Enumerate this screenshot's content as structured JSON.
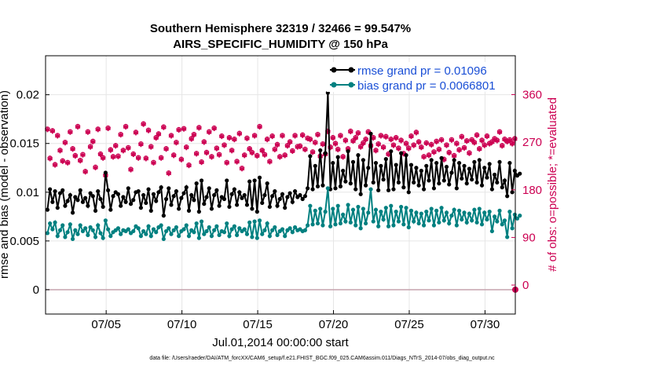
{
  "chart_data": {
    "type": "line",
    "title": "Southern Hemisphere 32319 / 32466 = 99.547%",
    "subtitle": "AIRS_SPECIFIC_HUMIDITY @ 150 hPa",
    "xlabel": "Jul.01,2014 00:00:00 start",
    "ylabel_left": "rmse and bias (model - observation)",
    "ylabel_right": "# of obs: o=possible; *=evaluated",
    "footer": "data file: /Users/raeder/DAI/ATM_forcXX/CAM6_setup/f.e21.FHIST_BGC.f09_025.CAM6assim.011/Diags_NTrS_2014-07/obs_diag_output.nc",
    "x_tick_labels": [
      "07/05",
      "07/10",
      "07/15",
      "07/20",
      "07/25",
      "07/30"
    ],
    "x_tick_days": [
      5,
      10,
      15,
      20,
      25,
      30
    ],
    "xlim_days": [
      1,
      32
    ],
    "y_left_ticks": [
      "0",
      "0.005",
      "0.01",
      "0.015",
      "0.02"
    ],
    "y_left_tick_values": [
      0,
      0.005,
      0.01,
      0.015,
      0.02
    ],
    "ylim_left": [
      -0.0025,
      0.024
    ],
    "y_right_ticks": [
      "0",
      "90",
      "180",
      "270",
      "360"
    ],
    "y_right_tick_values": [
      0,
      90,
      180,
      270,
      360
    ],
    "ylim_right": [
      -54.8,
      433.5
    ],
    "grid": true,
    "legend_placement": "top-right",
    "series": [
      {
        "name": "rmse grand pr = 0.01096",
        "color": "#000000",
        "axis": "left",
        "values": [
          0.0082,
          0.0103,
          0.009,
          0.0101,
          0.0084,
          0.0099,
          0.0102,
          0.0086,
          0.0091,
          0.0097,
          0.0079,
          0.0095,
          0.0092,
          0.0102,
          0.009,
          0.0094,
          0.0086,
          0.0099,
          0.0096,
          0.0081,
          0.0101,
          0.0093,
          0.0085,
          0.012,
          0.0102,
          0.0082,
          0.0096,
          0.01,
          0.0098,
          0.0086,
          0.0095,
          0.009,
          0.0104,
          0.0088,
          0.0092,
          0.01,
          0.0101,
          0.0084,
          0.0097,
          0.0089,
          0.0103,
          0.0081,
          0.0098,
          0.0091,
          0.01,
          0.0105,
          0.0076,
          0.0093,
          0.0104,
          0.0087,
          0.0096,
          0.0101,
          0.0083,
          0.0094,
          0.0099,
          0.0105,
          0.0081,
          0.0097,
          0.0092,
          0.0109,
          0.008,
          0.0112,
          0.0088,
          0.0095,
          0.0104,
          0.0083,
          0.0097,
          0.0102,
          0.0086,
          0.0095,
          0.0093,
          0.0112,
          0.0085,
          0.0098,
          0.0103,
          0.0087,
          0.01,
          0.0094,
          0.0097,
          0.0087,
          0.0111,
          0.0083,
          0.0112,
          0.008,
          0.0115,
          0.0089,
          0.0097,
          0.0109,
          0.0085,
          0.0096,
          0.0101,
          0.0086,
          0.0093,
          0.0098,
          0.0084,
          0.0095,
          0.0099,
          0.009,
          0.0101,
          0.0095,
          0.0097,
          0.0093,
          0.0096,
          0.0104,
          0.0137,
          0.0103,
          0.0127,
          0.0106,
          0.0143,
          0.0107,
          0.014,
          0.0202,
          0.0103,
          0.013,
          0.0104,
          0.0136,
          0.0106,
          0.0122,
          0.0111,
          0.0142,
          0.0109,
          0.0131,
          0.0103,
          0.0138,
          0.0098,
          0.0133,
          0.0107,
          0.0125,
          0.016,
          0.011,
          0.013,
          0.0102,
          0.0127,
          0.0113,
          0.0134,
          0.0102,
          0.0142,
          0.0103,
          0.0128,
          0.011,
          0.014,
          0.0105,
          0.0138,
          0.01,
          0.0128,
          0.011,
          0.0125,
          0.0107,
          0.0122,
          0.0103,
          0.0127,
          0.0112,
          0.0133,
          0.0104,
          0.013,
          0.0109,
          0.0135,
          0.0112,
          0.0126,
          0.0108,
          0.012,
          0.0133,
          0.0104,
          0.013,
          0.0114,
          0.0127,
          0.0109,
          0.0124,
          0.0113,
          0.0131,
          0.011,
          0.0133,
          0.0107,
          0.0125,
          0.0115,
          0.0129,
          0.0103,
          0.0118,
          0.011,
          0.0131,
          0.0105,
          0.0112,
          0.0096,
          0.013,
          0.01,
          0.0122,
          0.0117,
          0.0119
        ]
      },
      {
        "name": "bias grand pr = 0.0066801",
        "color": "#008080",
        "axis": "left",
        "values": [
          0.0058,
          0.0068,
          0.0062,
          0.0069,
          0.0055,
          0.0061,
          0.0066,
          0.0054,
          0.0059,
          0.0067,
          0.0052,
          0.0061,
          0.0057,
          0.0066,
          0.006,
          0.0063,
          0.0056,
          0.0064,
          0.0061,
          0.0054,
          0.0066,
          0.0058,
          0.0053,
          0.0071,
          0.0062,
          0.0055,
          0.0059,
          0.0061,
          0.0063,
          0.0057,
          0.0061,
          0.006,
          0.0062,
          0.0058,
          0.006,
          0.0065,
          0.0063,
          0.0055,
          0.006,
          0.0057,
          0.0065,
          0.0055,
          0.0062,
          0.0059,
          0.0064,
          0.0066,
          0.0052,
          0.006,
          0.0063,
          0.0057,
          0.0061,
          0.0064,
          0.0055,
          0.006,
          0.0062,
          0.0066,
          0.0055,
          0.0061,
          0.0059,
          0.0068,
          0.0053,
          0.007,
          0.0057,
          0.006,
          0.0064,
          0.0055,
          0.0061,
          0.0065,
          0.0056,
          0.006,
          0.0059,
          0.0068,
          0.0055,
          0.0062,
          0.0065,
          0.0056,
          0.0063,
          0.006,
          0.0062,
          0.0057,
          0.0069,
          0.0054,
          0.007,
          0.0053,
          0.0071,
          0.0057,
          0.0061,
          0.0068,
          0.0055,
          0.0061,
          0.0064,
          0.0056,
          0.006,
          0.0062,
          0.0055,
          0.0061,
          0.0063,
          0.0059,
          0.0064,
          0.0061,
          0.0062,
          0.006,
          0.0061,
          0.0066,
          0.0086,
          0.0067,
          0.0081,
          0.0068,
          0.0083,
          0.0066,
          0.008,
          0.0104,
          0.0065,
          0.0083,
          0.0067,
          0.0086,
          0.0068,
          0.0077,
          0.007,
          0.0087,
          0.0069,
          0.0082,
          0.0066,
          0.0085,
          0.0063,
          0.0083,
          0.0068,
          0.0079,
          0.0103,
          0.007,
          0.0082,
          0.0065,
          0.008,
          0.0072,
          0.0084,
          0.0065,
          0.0086,
          0.0066,
          0.008,
          0.007,
          0.0085,
          0.0067,
          0.0084,
          0.0064,
          0.0081,
          0.007,
          0.0079,
          0.0068,
          0.0078,
          0.0066,
          0.008,
          0.0071,
          0.0083,
          0.0066,
          0.0081,
          0.0069,
          0.0084,
          0.0071,
          0.0079,
          0.0068,
          0.0076,
          0.0082,
          0.0066,
          0.0081,
          0.0072,
          0.0079,
          0.0069,
          0.0078,
          0.0071,
          0.0082,
          0.0069,
          0.0083,
          0.0067,
          0.0079,
          0.0072,
          0.008,
          0.006,
          0.0075,
          0.007,
          0.0081,
          0.0067,
          0.0071,
          0.0054,
          0.008,
          0.0063,
          0.0077,
          0.0073,
          0.0076
        ]
      }
    ],
    "obs_counts_possible": [
      295,
      240,
      292,
      228,
      283,
      255,
      235,
      270,
      232,
      290,
      258,
      245,
      300,
      236,
      247,
      215,
      290,
      262,
      272,
      223,
      295,
      248,
      241,
      208,
      297,
      256,
      243,
      264,
      244,
      285,
      255,
      300,
      260,
      219,
      248,
      289,
      241,
      267,
      305,
      240,
      293,
      262,
      232,
      279,
      286,
      241,
      299,
      258,
      212,
      283,
      246,
      270,
      294,
      238,
      296,
      261,
      227,
      277,
      285,
      249,
      298,
      233,
      271,
      251,
      290,
      243,
      297,
      259,
      247,
      282,
      265,
      232,
      279,
      255,
      276,
      234,
      287,
      221,
      246,
      278,
      258,
      251,
      283,
      245,
      300,
      255,
      247,
      276,
      234,
      282,
      257,
      266,
      243,
      283,
      246,
      264,
      271,
      254,
      283,
      262,
      263,
      284,
      257,
      278,
      276,
      252,
      270,
      285,
      244,
      267,
      248,
      291,
      261,
      279,
      268,
      257,
      283,
      243,
      274,
      258,
      291,
      273,
      279,
      288,
      262,
      269,
      276,
      290,
      264,
      279,
      255,
      267,
      283,
      261,
      281,
      248,
      276,
      265,
      279,
      259,
      274,
      249,
      268,
      259,
      282,
      265,
      289,
      271,
      261,
      243,
      269,
      246,
      266,
      252,
      272,
      257,
      275,
      238,
      265,
      251,
      275,
      245,
      268,
      256,
      281,
      260,
      273,
      250,
      275,
      270,
      284,
      258,
      274,
      265,
      282,
      268,
      271,
      277,
      274,
      290,
      264,
      276,
      272,
      275,
      268,
      277
    ],
    "obs_counts_evaluated": [
      294,
      239,
      291,
      227,
      282,
      254,
      234,
      269,
      231,
      289,
      257,
      244,
      299,
      235,
      246,
      214,
      289,
      261,
      271,
      222,
      294,
      247,
      240,
      207,
      296,
      255,
      242,
      263,
      243,
      284,
      254,
      299,
      259,
      218,
      247,
      288,
      240,
      266,
      304,
      239,
      292,
      261,
      231,
      278,
      285,
      240,
      298,
      257,
      211,
      282,
      245,
      269,
      293,
      237,
      295,
      260,
      226,
      276,
      284,
      248,
      297,
      232,
      270,
      250,
      289,
      242,
      296,
      258,
      246,
      281,
      264,
      231,
      278,
      254,
      275,
      233,
      286,
      220,
      245,
      277,
      257,
      250,
      282,
      244,
      299,
      254,
      246,
      275,
      233,
      281,
      256,
      265,
      242,
      282,
      245,
      263,
      270,
      253,
      282,
      261,
      262,
      283,
      256,
      277,
      275,
      251,
      269,
      284,
      243,
      266,
      247,
      290,
      260,
      278,
      267,
      256,
      282,
      242,
      273,
      257,
      290,
      272,
      278,
      287,
      261,
      268,
      275,
      289,
      263,
      278,
      254,
      266,
      282,
      260,
      280,
      247,
      275,
      264,
      278,
      258,
      273,
      248,
      267,
      258,
      281,
      264,
      288,
      270,
      260,
      242,
      268,
      245,
      265,
      251,
      271,
      256,
      274,
      237,
      264,
      250,
      274,
      244,
      267,
      255,
      280,
      259,
      272,
      249,
      274,
      269,
      283,
      257,
      273,
      264,
      281,
      267,
      270,
      276,
      273,
      289,
      263,
      275,
      271,
      274,
      267,
      276
    ],
    "obs_color": "#cc0052"
  }
}
